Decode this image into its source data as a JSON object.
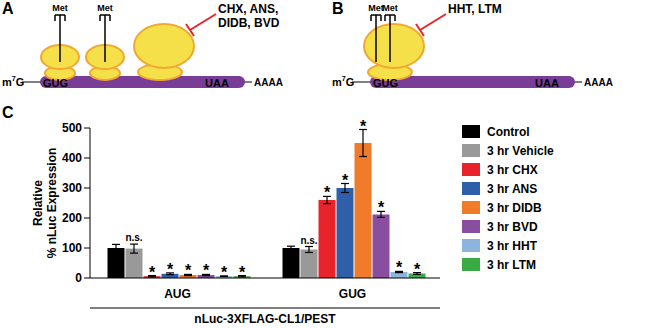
{
  "panel_label": "C",
  "diagrams": [
    {
      "panel_label": "A",
      "cap": "m7G",
      "start_codon": "GUG",
      "stop_codon": "UAA",
      "tail": "AAAA",
      "trna": "Met",
      "ribosomes": 3,
      "met_trnas": 2,
      "inhibitors": "CHX, ANS, DIDB, BVD"
    },
    {
      "panel_label": "B",
      "cap": "m7G",
      "start_codon": "GUG",
      "stop_codon": "UAA",
      "tail": "AAAA",
      "trna": "Met",
      "ribosomes": 1,
      "met_trnas": 2,
      "inhibitors": "HHT, LTM"
    }
  ],
  "chart_data": {
    "type": "bar",
    "categories": [
      "AUG",
      "GUG"
    ],
    "xlabel": "nLuc-3XFLAG-CL1/PEST",
    "ylabel": "Relative % nLuc Expression",
    "ylim": [
      0,
      500
    ],
    "yticks": [
      0,
      100,
      200,
      300,
      400,
      500
    ],
    "legend": "right",
    "series": [
      {
        "name": "Control",
        "color": "#000000",
        "values": [
          100,
          100
        ],
        "errors": [
          12,
          6
        ]
      },
      {
        "name": "3 hr Vehicle",
        "color": "#999999",
        "values": [
          98,
          95
        ],
        "errors": [
          15,
          10
        ],
        "annotation": "n.s."
      },
      {
        "name": "3 hr CHX",
        "color": "#e8242a",
        "values": [
          6,
          260
        ],
        "errors": [
          2,
          12
        ],
        "annotation": "*"
      },
      {
        "name": "3 hr ANS",
        "color": "#2e5fa8",
        "values": [
          14,
          300
        ],
        "errors": [
          3,
          15
        ],
        "annotation": "*"
      },
      {
        "name": "3 hr DIDB",
        "color": "#f07b2a",
        "values": [
          10,
          450
        ],
        "errors": [
          2,
          45
        ],
        "annotation": "*"
      },
      {
        "name": "3 hr BVD",
        "color": "#8a4ea0",
        "values": [
          10,
          212
        ],
        "errors": [
          2,
          10
        ],
        "annotation": "*"
      },
      {
        "name": "3 hr HHT",
        "color": "#8db4dc",
        "values": [
          6,
          20
        ],
        "errors": [
          1,
          2
        ],
        "annotation": "*"
      },
      {
        "name": "3 hr LTM",
        "color": "#3aaa45",
        "values": [
          6,
          15
        ],
        "errors": [
          2,
          3
        ],
        "annotation": "*"
      }
    ]
  }
}
